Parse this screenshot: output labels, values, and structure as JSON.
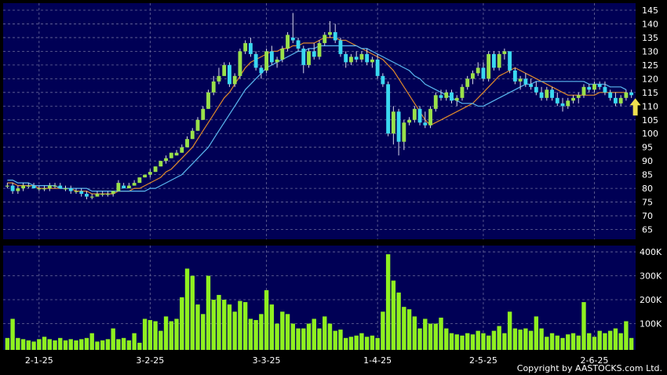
{
  "copyright": "Copyright by AASTOCKS.com Ltd.",
  "colors": {
    "background": "#000000",
    "panel": "#000055",
    "grid": "#6a6a9a",
    "candle_up": "#9ae14a",
    "candle_down": "#3ad8f0",
    "sma_short": "#e08a2a",
    "sma_long": "#5ab8f0",
    "volume": "#8ff020",
    "arrow": "#f0e050"
  },
  "chart_data": [
    {
      "type": "candlestick",
      "panel": "price",
      "y_ticks": [
        65,
        70,
        75,
        80,
        85,
        90,
        95,
        100,
        105,
        110,
        115,
        120,
        125,
        130,
        135,
        140,
        145
      ],
      "ylim": [
        62,
        147
      ],
      "x_tick_labels": [
        "2-1-25",
        "3-2-25",
        "3-3-25",
        "1-4-25",
        "2-5-25",
        "2-6-25"
      ],
      "x_tick_index": [
        6,
        27,
        49,
        70,
        90,
        111
      ],
      "grid": true,
      "ohlc": [
        [
          81,
          82,
          80,
          81
        ],
        [
          81,
          82,
          78,
          79
        ],
        [
          79,
          81,
          78,
          80
        ],
        [
          80,
          82,
          79,
          81
        ],
        [
          81,
          82,
          80,
          81
        ],
        [
          81,
          82,
          80,
          80
        ],
        [
          80,
          81,
          79,
          80
        ],
        [
          80,
          81,
          79,
          80
        ],
        [
          80,
          82,
          79,
          81
        ],
        [
          81,
          82,
          80,
          81
        ],
        [
          81,
          82,
          80,
          80
        ],
        [
          80,
          81,
          79,
          80
        ],
        [
          80,
          81,
          78,
          79
        ],
        [
          79,
          80,
          78,
          79
        ],
        [
          79,
          80,
          77,
          78
        ],
        [
          78,
          79,
          76,
          77
        ],
        [
          77,
          78,
          76,
          77
        ],
        [
          77,
          79,
          77,
          78
        ],
        [
          78,
          79,
          77,
          78
        ],
        [
          78,
          79,
          77,
          78
        ],
        [
          78,
          79,
          77,
          79
        ],
        [
          79,
          83,
          79,
          82
        ],
        [
          81,
          82,
          80,
          80
        ],
        [
          80,
          82,
          80,
          81
        ],
        [
          81,
          83,
          81,
          82
        ],
        [
          82,
          84,
          82,
          84
        ],
        [
          84,
          85,
          84,
          85
        ],
        [
          85,
          87,
          84,
          86
        ],
        [
          86,
          88,
          86,
          88
        ],
        [
          88,
          90,
          88,
          90
        ],
        [
          90,
          92,
          89,
          91
        ],
        [
          91,
          93,
          91,
          93
        ],
        [
          92,
          94,
          92,
          93
        ],
        [
          93,
          96,
          93,
          95
        ],
        [
          95,
          99,
          95,
          98
        ],
        [
          98,
          102,
          98,
          101
        ],
        [
          101,
          106,
          101,
          105
        ],
        [
          105,
          110,
          105,
          109
        ],
        [
          109,
          116,
          109,
          115
        ],
        [
          115,
          121,
          114,
          119
        ],
        [
          119,
          124,
          118,
          121
        ],
        [
          121,
          126,
          121,
          125
        ],
        [
          125,
          126,
          117,
          118
        ],
        [
          118,
          122,
          117,
          121
        ],
        [
          121,
          131,
          120,
          130
        ],
        [
          130,
          134,
          129,
          133
        ],
        [
          133,
          135,
          128,
          129
        ],
        [
          129,
          130,
          123,
          124
        ],
        [
          124,
          125,
          120,
          122
        ],
        [
          123,
          131,
          122,
          130
        ],
        [
          130,
          132,
          125,
          126
        ],
        [
          126,
          128,
          124,
          127
        ],
        [
          127,
          132,
          126,
          131
        ],
        [
          131,
          137,
          130,
          136
        ],
        [
          135,
          144,
          133,
          134
        ],
        [
          134,
          135,
          130,
          131
        ],
        [
          131,
          132,
          122,
          125
        ],
        [
          125,
          131,
          124,
          130
        ],
        [
          130,
          133,
          127,
          128
        ],
        [
          128,
          134,
          127,
          133
        ],
        [
          133,
          137,
          132,
          136
        ],
        [
          136,
          141,
          135,
          137
        ],
        [
          137,
          140,
          133,
          134
        ],
        [
          134,
          135,
          128,
          129
        ],
        [
          129,
          130,
          124,
          126
        ],
        [
          126,
          129,
          125,
          128
        ],
        [
          128,
          130,
          126,
          127
        ],
        [
          127,
          130,
          126,
          129
        ],
        [
          129,
          131,
          125,
          126
        ],
        [
          126,
          128,
          124,
          127
        ],
        [
          127,
          129,
          120,
          121
        ],
        [
          121,
          122,
          117,
          118
        ],
        [
          118,
          119,
          99,
          100
        ],
        [
          100,
          110,
          96,
          108
        ],
        [
          108,
          109,
          92,
          97
        ],
        [
          97,
          105,
          94,
          104
        ],
        [
          104,
          106,
          103,
          105
        ],
        [
          105,
          110,
          104,
          109
        ],
        [
          109,
          110,
          103,
          104
        ],
        [
          104,
          108,
          102,
          103
        ],
        [
          103,
          110,
          102,
          109
        ],
        [
          109,
          115,
          108,
          114
        ],
        [
          114,
          116,
          112,
          113
        ],
        [
          113,
          116,
          112,
          115
        ],
        [
          115,
          116,
          111,
          112
        ],
        [
          112,
          114,
          110,
          113
        ],
        [
          113,
          118,
          112,
          117
        ],
        [
          117,
          121,
          116,
          120
        ],
        [
          120,
          123,
          118,
          122
        ],
        [
          122,
          126,
          121,
          124
        ],
        [
          124,
          126,
          119,
          120
        ],
        [
          120,
          130,
          119,
          129
        ],
        [
          129,
          130,
          123,
          124
        ],
        [
          124,
          130,
          123,
          129
        ],
        [
          129,
          131,
          127,
          130
        ],
        [
          130,
          130,
          122,
          123
        ],
        [
          123,
          124,
          118,
          119
        ],
        [
          119,
          121,
          116,
          120
        ],
        [
          120,
          122,
          117,
          118
        ],
        [
          118,
          120,
          116,
          117
        ],
        [
          117,
          119,
          114,
          115
        ],
        [
          115,
          117,
          112,
          113
        ],
        [
          113,
          117,
          112,
          116
        ],
        [
          116,
          117,
          112,
          113
        ],
        [
          113,
          115,
          110,
          111
        ],
        [
          111,
          113,
          108,
          110
        ],
        [
          110,
          113,
          109,
          112
        ],
        [
          112,
          114,
          111,
          113
        ],
        [
          113,
          115,
          111,
          114
        ],
        [
          114,
          118,
          113,
          117
        ],
        [
          117,
          118,
          115,
          116
        ],
        [
          116,
          119,
          115,
          118
        ],
        [
          118,
          119,
          116,
          117
        ],
        [
          117,
          119,
          114,
          115
        ],
        [
          115,
          116,
          112,
          113
        ],
        [
          113,
          115,
          110,
          111
        ],
        [
          111,
          114,
          110,
          113
        ],
        [
          113,
          116,
          112,
          115
        ],
        [
          115,
          116,
          113,
          114
        ]
      ],
      "sma_short": [
        82,
        82,
        81,
        81,
        81,
        81,
        80,
        80,
        80,
        80,
        80,
        80,
        80,
        79,
        79,
        79,
        78,
        78,
        78,
        78,
        78,
        79,
        79,
        79,
        80,
        80,
        81,
        82,
        83,
        84,
        86,
        87,
        89,
        91,
        93,
        95,
        98,
        101,
        104,
        107,
        110,
        113,
        115,
        118,
        121,
        124,
        126,
        127,
        128,
        129,
        130,
        130,
        131,
        131,
        132,
        132,
        133,
        133,
        133,
        134,
        135,
        135,
        135,
        134,
        134,
        133,
        132,
        131,
        130,
        129,
        128,
        127,
        125,
        123,
        120,
        117,
        114,
        111,
        108,
        105,
        103,
        104,
        105,
        106,
        107,
        108,
        109,
        110,
        111,
        113,
        115,
        117,
        119,
        121,
        122,
        123,
        124,
        123,
        122,
        121,
        120,
        119,
        118,
        117,
        116,
        115,
        114,
        114,
        114,
        114,
        114,
        114,
        115,
        115,
        115,
        115,
        115,
        115
      ],
      "sma_long": [
        83,
        83,
        82,
        82,
        82,
        81,
        81,
        81,
        81,
        81,
        80,
        80,
        80,
        80,
        80,
        80,
        79,
        79,
        79,
        79,
        79,
        79,
        79,
        79,
        79,
        79,
        79,
        80,
        80,
        81,
        82,
        83,
        84,
        85,
        87,
        89,
        91,
        93,
        95,
        98,
        101,
        104,
        107,
        110,
        113,
        116,
        118,
        120,
        122,
        124,
        125,
        126,
        127,
        128,
        129,
        130,
        130,
        131,
        131,
        132,
        132,
        132,
        132,
        132,
        132,
        132,
        132,
        131,
        131,
        130,
        129,
        128,
        127,
        126,
        125,
        124,
        123,
        121,
        120,
        118,
        117,
        116,
        115,
        114,
        113,
        112,
        111,
        111,
        111,
        110,
        110,
        111,
        112,
        113,
        114,
        115,
        116,
        117,
        118,
        118,
        119,
        119,
        119,
        119,
        119,
        119,
        119,
        119,
        119,
        119,
        118,
        118,
        118,
        118,
        117,
        117,
        117,
        116
      ]
    },
    {
      "type": "bar",
      "panel": "volume",
      "y_ticks": [
        100000,
        200000,
        300000,
        400000
      ],
      "y_tick_labels": [
        "100K",
        "200K",
        "300K",
        "400K"
      ],
      "ylim": [
        0,
        410000
      ],
      "values": [
        40000,
        120000,
        40000,
        35000,
        30000,
        25000,
        35000,
        45000,
        35000,
        30000,
        40000,
        30000,
        35000,
        30000,
        35000,
        40000,
        60000,
        25000,
        30000,
        35000,
        80000,
        35000,
        40000,
        30000,
        60000,
        20000,
        120000,
        115000,
        110000,
        70000,
        130000,
        110000,
        120000,
        210000,
        330000,
        300000,
        180000,
        140000,
        300000,
        200000,
        220000,
        200000,
        180000,
        150000,
        195000,
        190000,
        120000,
        115000,
        140000,
        240000,
        180000,
        100000,
        150000,
        140000,
        100000,
        80000,
        80000,
        100000,
        120000,
        80000,
        130000,
        100000,
        70000,
        75000,
        40000,
        45000,
        50000,
        60000,
        45000,
        50000,
        40000,
        150000,
        390000,
        280000,
        230000,
        170000,
        160000,
        130000,
        80000,
        120000,
        100000,
        100000,
        125000,
        80000,
        60000,
        55000,
        50000,
        60000,
        55000,
        70000,
        60000,
        50000,
        70000,
        90000,
        60000,
        150000,
        80000,
        75000,
        80000,
        70000,
        130000,
        80000,
        45000,
        60000,
        50000,
        40000,
        55000,
        60000,
        50000,
        190000,
        60000,
        45000,
        70000,
        60000,
        70000,
        80000,
        60000,
        110000,
        40000
      ]
    }
  ]
}
